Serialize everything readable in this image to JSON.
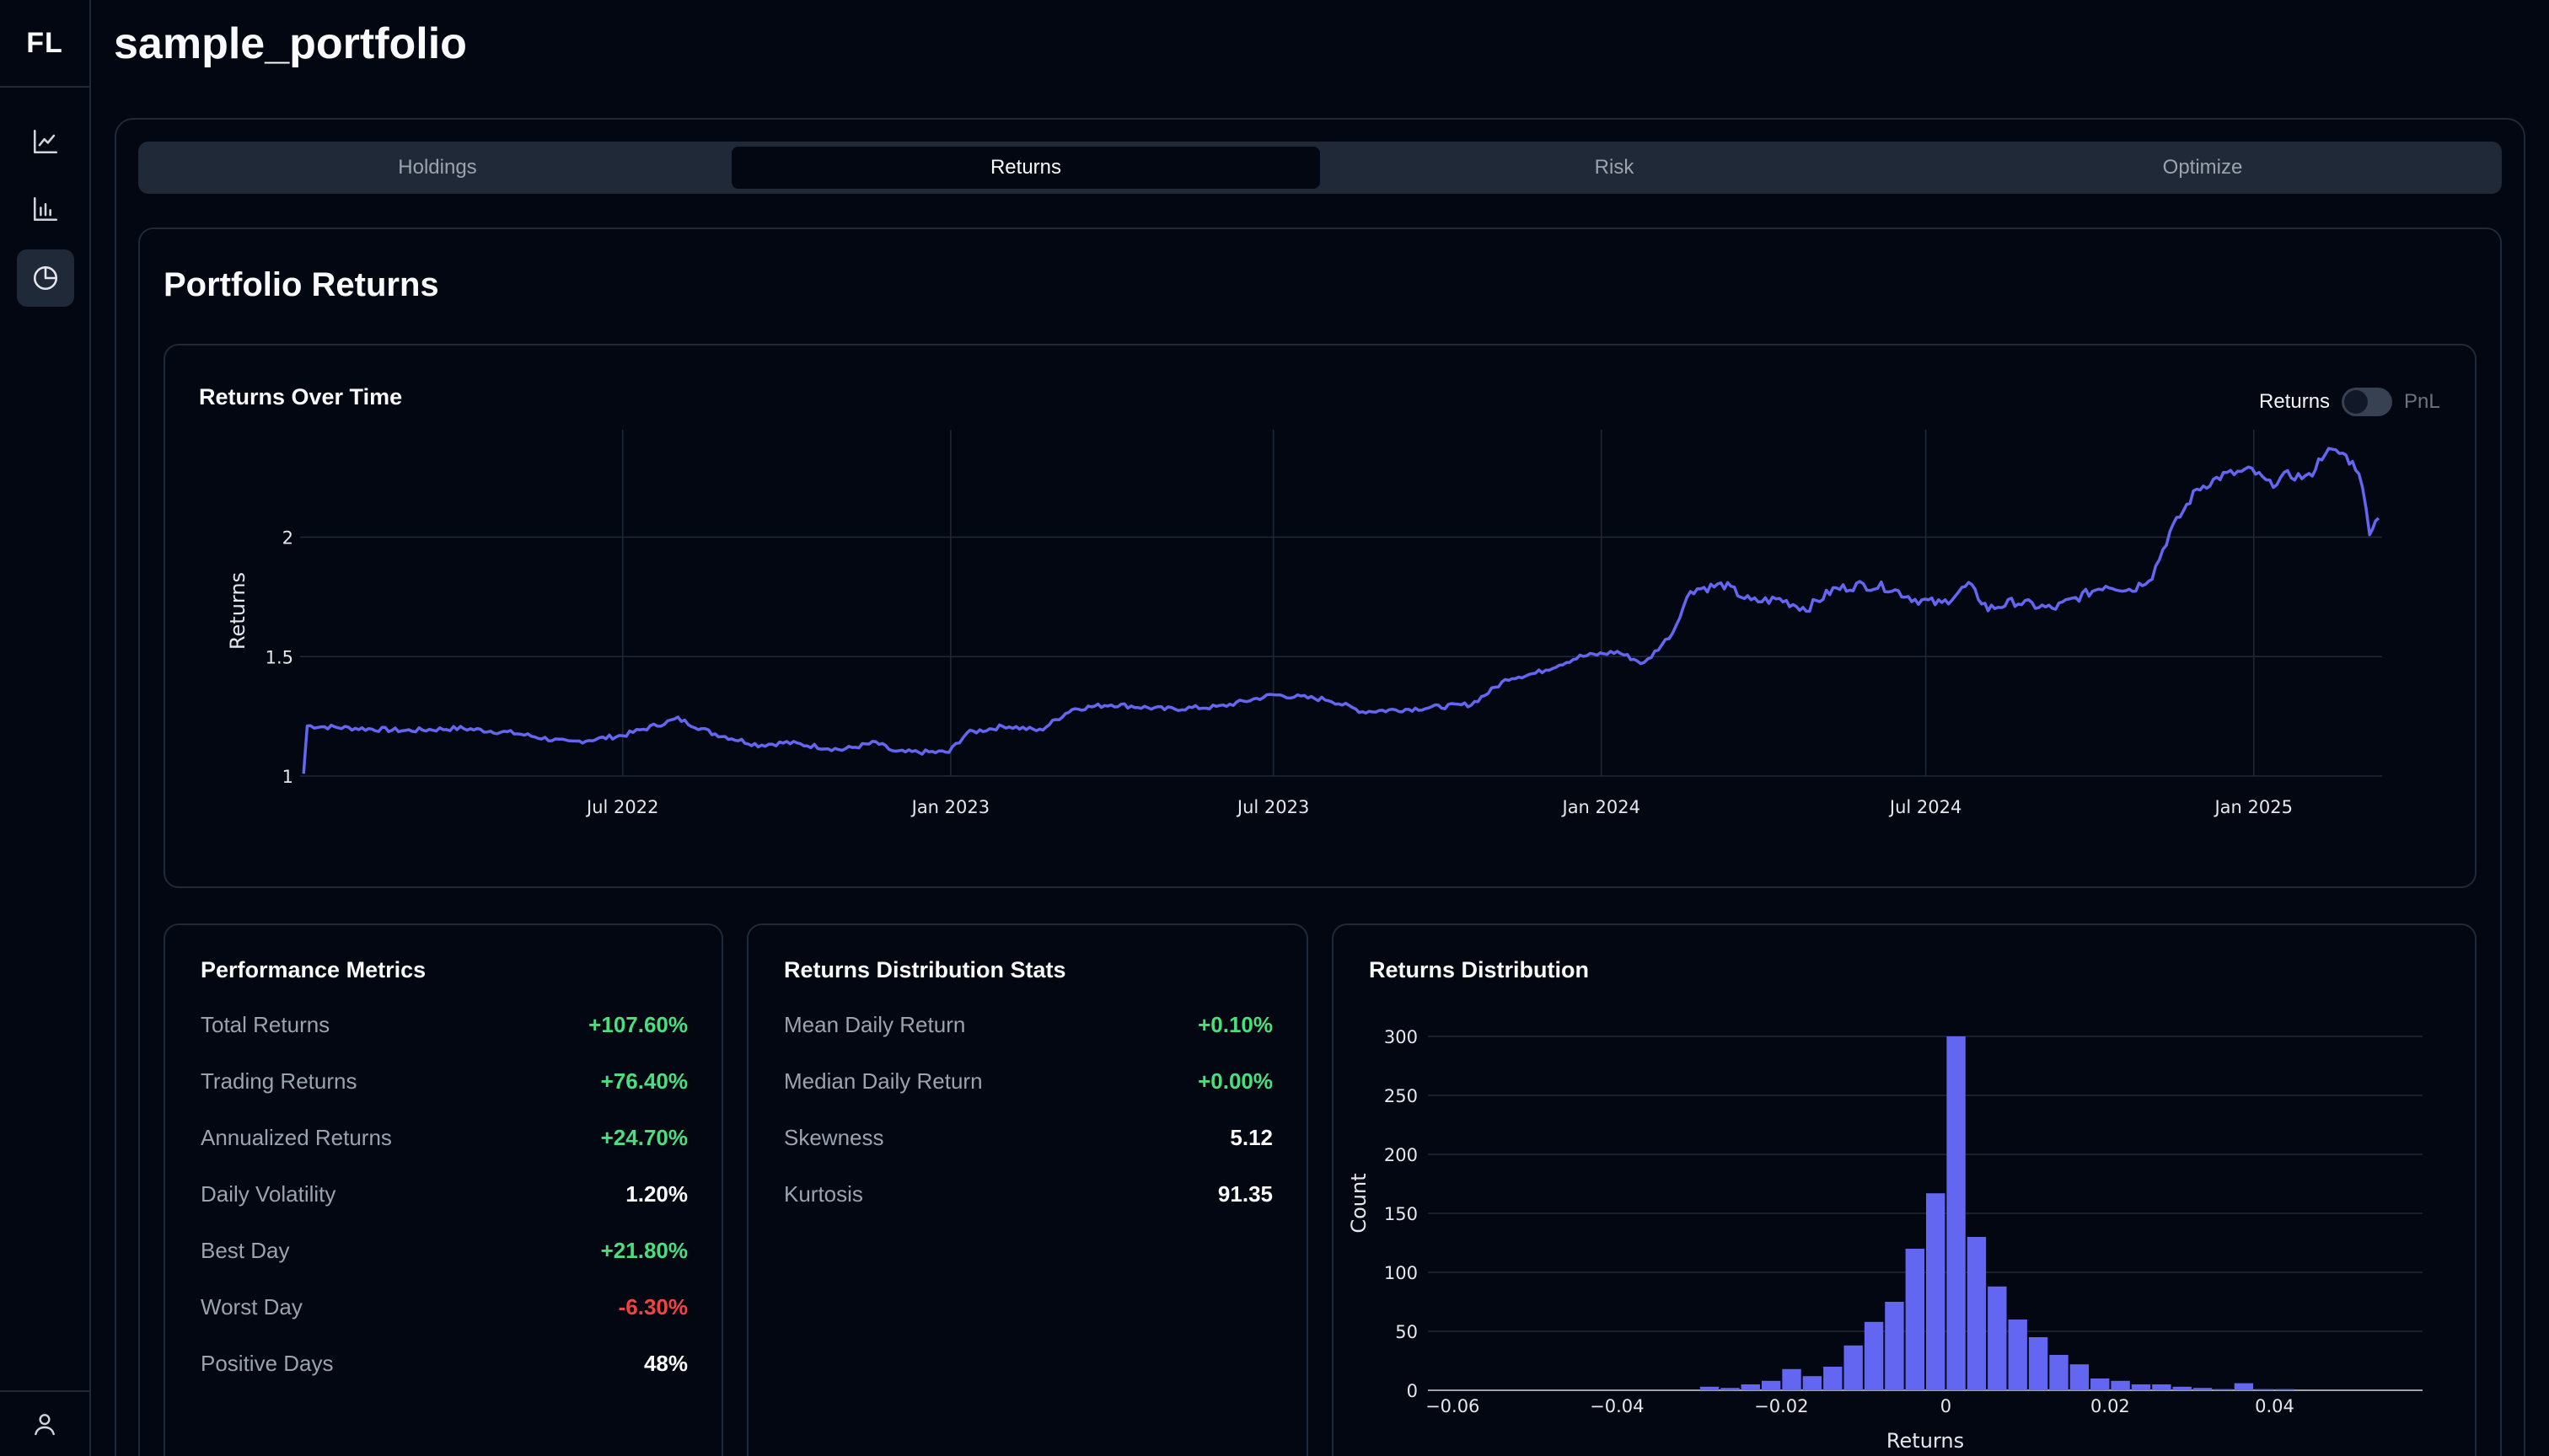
{
  "app": {
    "logo": "FL",
    "page_title": "sample_portfolio"
  },
  "sidebar": {
    "items": [
      {
        "name": "line-chart",
        "icon": "line-chart-icon",
        "active": false
      },
      {
        "name": "bar-chart",
        "icon": "bar-chart-icon",
        "active": false
      },
      {
        "name": "pie-chart",
        "icon": "pie-chart-icon",
        "active": true
      }
    ],
    "bottom_icon": "user-icon"
  },
  "tabs": [
    {
      "label": "Holdings",
      "active": false
    },
    {
      "label": "Returns",
      "active": true
    },
    {
      "label": "Risk",
      "active": false
    },
    {
      "label": "Optimize",
      "active": false
    }
  ],
  "section_title": "Portfolio Returns",
  "returns_chart": {
    "title": "Returns Over Time",
    "toggle": {
      "left_label": "Returns",
      "right_label": "PnL"
    }
  },
  "performance": {
    "title": "Performance Metrics",
    "rows": [
      {
        "label": "Total Returns",
        "value": "+107.60%",
        "tone": "pos"
      },
      {
        "label": "Trading Returns",
        "value": "+76.40%",
        "tone": "pos"
      },
      {
        "label": "Annualized Returns",
        "value": "+24.70%",
        "tone": "pos"
      },
      {
        "label": "Daily Volatility",
        "value": "1.20%",
        "tone": "neu"
      },
      {
        "label": "Best Day",
        "value": "+21.80%",
        "tone": "pos"
      },
      {
        "label": "Worst Day",
        "value": "-6.30%",
        "tone": "neg"
      },
      {
        "label": "Positive Days",
        "value": "48%",
        "tone": "neu"
      }
    ]
  },
  "distribution_stats": {
    "title": "Returns Distribution Stats",
    "rows": [
      {
        "label": "Mean Daily Return",
        "value": "+0.10%",
        "tone": "pos"
      },
      {
        "label": "Median Daily Return",
        "value": "+0.00%",
        "tone": "pos"
      },
      {
        "label": "Skewness",
        "value": "5.12",
        "tone": "neu"
      },
      {
        "label": "Kurtosis",
        "value": "91.35",
        "tone": "neu"
      }
    ]
  },
  "histogram_card": {
    "title": "Returns Distribution"
  },
  "colors": {
    "series": "#6366f1",
    "positive": "#4ade80",
    "negative": "#ef4444",
    "grid": "#1f2937"
  },
  "chart_data": [
    {
      "type": "line",
      "title": "Returns Over Time",
      "xlabel": "",
      "ylabel": "Returns",
      "x_ticks": [
        "Jul 2022",
        "Jan 2023",
        "Jul 2023",
        "Jan 2024",
        "Jul 2024",
        "Jan 2025"
      ],
      "y_ticks": [
        "1",
        "1.5",
        "2"
      ],
      "ylim": [
        1,
        2.45
      ],
      "xlim": [
        "2022-01-01",
        "2025-03-14"
      ],
      "grid": true,
      "series": [
        {
          "x": [
            "2022-01-03",
            "2022-01-05",
            "2022-02-01",
            "2022-03-01",
            "2022-04-01",
            "2022-05-01",
            "2022-06-01",
            "2022-07-01",
            "2022-08-01",
            "2022-08-20",
            "2022-09-15",
            "2022-10-01",
            "2022-11-01",
            "2022-11-20",
            "2022-12-01",
            "2022-12-31",
            "2023-01-10",
            "2023-02-01",
            "2023-02-20",
            "2023-03-10",
            "2023-04-01",
            "2023-05-01",
            "2023-06-01",
            "2023-07-01",
            "2023-08-01",
            "2023-08-20",
            "2023-09-15",
            "2023-10-20",
            "2023-11-10",
            "2023-11-25",
            "2023-12-20",
            "2024-01-10",
            "2024-01-25",
            "2024-02-10",
            "2024-02-20",
            "2024-03-10",
            "2024-03-25",
            "2024-04-10",
            "2024-04-25",
            "2024-05-10",
            "2024-05-25",
            "2024-06-10",
            "2024-06-25",
            "2024-07-10",
            "2024-07-25",
            "2024-08-05",
            "2024-08-20",
            "2024-09-10",
            "2024-09-25",
            "2024-10-10",
            "2024-10-25",
            "2024-11-05",
            "2024-11-15",
            "2024-11-30",
            "2024-12-15",
            "2024-12-31",
            "2025-01-10",
            "2025-01-20",
            "2025-02-01",
            "2025-02-10",
            "2025-02-20",
            "2025-03-01",
            "2025-03-07",
            "2025-03-12"
          ],
          "y": [
            1.01,
            1.21,
            1.2,
            1.19,
            1.2,
            1.18,
            1.14,
            1.17,
            1.24,
            1.18,
            1.13,
            1.14,
            1.11,
            1.14,
            1.1,
            1.1,
            1.18,
            1.21,
            1.19,
            1.28,
            1.3,
            1.28,
            1.29,
            1.34,
            1.32,
            1.27,
            1.28,
            1.3,
            1.41,
            1.43,
            1.5,
            1.52,
            1.47,
            1.6,
            1.78,
            1.8,
            1.73,
            1.74,
            1.7,
            1.78,
            1.8,
            1.79,
            1.74,
            1.72,
            1.8,
            1.7,
            1.73,
            1.7,
            1.75,
            1.8,
            1.78,
            1.84,
            2.02,
            2.2,
            2.26,
            2.28,
            2.22,
            2.26,
            2.25,
            2.36,
            2.35,
            2.28,
            2.03,
            2.08
          ]
        }
      ]
    },
    {
      "type": "bar",
      "title": "Returns Distribution",
      "xlabel": "Returns",
      "ylabel": "Count",
      "xlim": [
        -0.063,
        0.058
      ],
      "ylim": [
        0,
        300
      ],
      "x_ticks": [
        "−0.06",
        "−0.04",
        "−0.02",
        "0",
        "0.02",
        "0.04"
      ],
      "y_ticks": [
        "0",
        "50",
        "100",
        "150",
        "200",
        "250",
        "300"
      ],
      "bin_width": 0.0025,
      "bin_starts": [
        -0.03,
        -0.0275,
        -0.025,
        -0.0225,
        -0.02,
        -0.0175,
        -0.015,
        -0.0125,
        -0.01,
        -0.0075,
        -0.005,
        -0.0025,
        0,
        0.0025,
        0.005,
        0.0075,
        0.01,
        0.0125,
        0.015,
        0.0175,
        0.02,
        0.0225,
        0.025,
        0.0275,
        0.03,
        0.0325,
        0.035,
        0.0375,
        0.04
      ],
      "counts": [
        3,
        2,
        5,
        8,
        18,
        12,
        20,
        38,
        58,
        75,
        120,
        167,
        300,
        130,
        88,
        60,
        45,
        30,
        22,
        10,
        8,
        5,
        5,
        3,
        2,
        1,
        6,
        1,
        1
      ]
    }
  ]
}
